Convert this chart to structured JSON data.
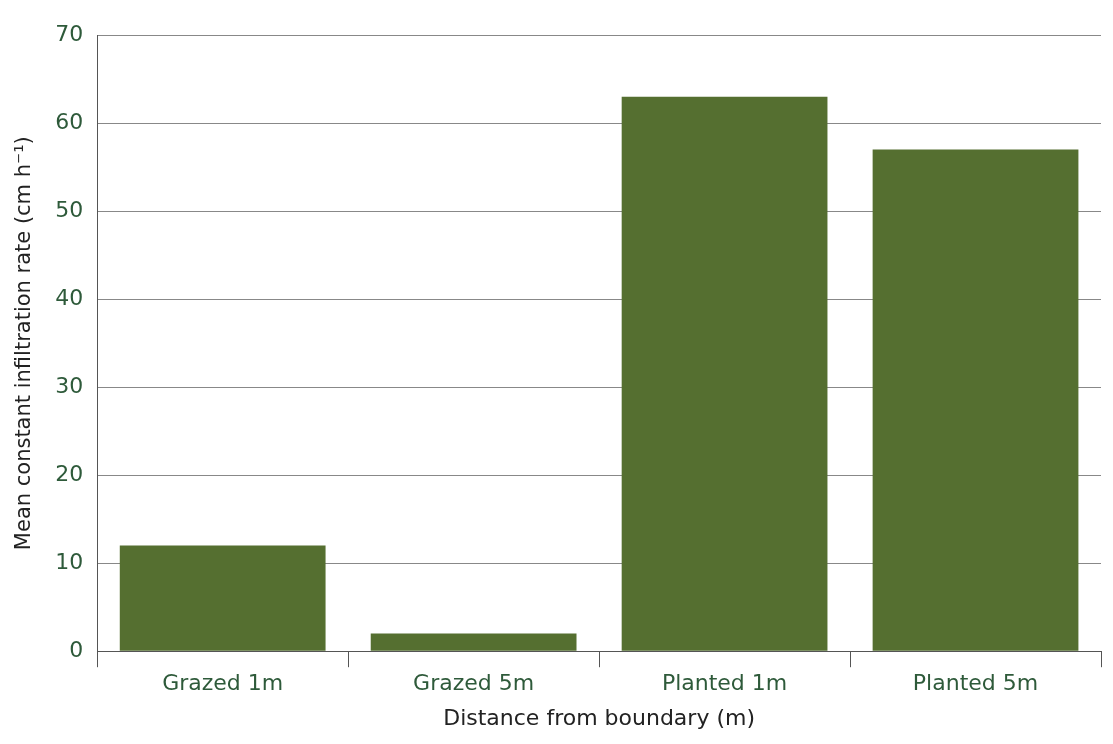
{
  "chart_data": {
    "type": "bar",
    "xlabel": "Distance from boundary (m)",
    "ylabel": "Mean constant infiltration rate (cm h⁻¹)",
    "categories": [
      "Grazed 1m",
      "Grazed 5m",
      "Planted 1m",
      "Planted 5m"
    ],
    "values": [
      12,
      2,
      63,
      57
    ],
    "color": "#556f30",
    "ylim": [
      0,
      70
    ],
    "yticks": [
      0,
      10,
      20,
      30,
      40,
      50,
      60,
      70
    ],
    "grid": "y"
  }
}
